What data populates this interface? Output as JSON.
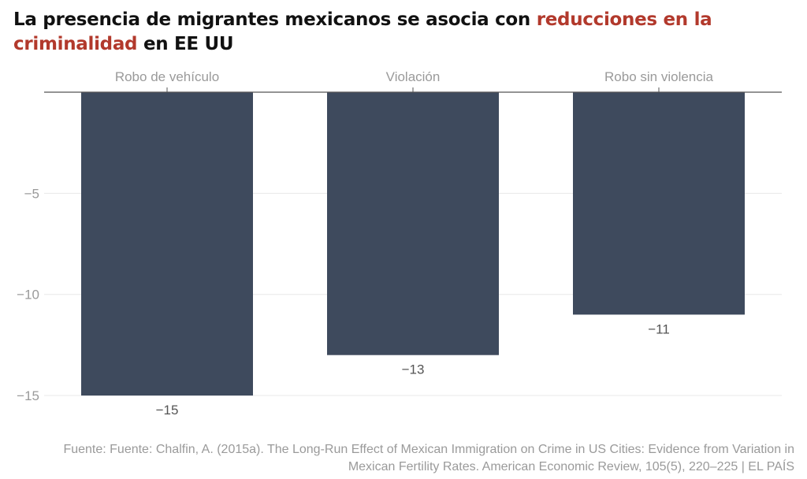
{
  "title": {
    "part1": "La presencia de migrantes mexicanos se asocia con ",
    "highlight": "reducciones en la criminalidad",
    "part2": " en EE UU"
  },
  "colors": {
    "bar": "#3e4a5d",
    "highlight": "#b2392c",
    "axis_text": "#9a9a9a",
    "grid": "#e8e8e8",
    "axis_line": "#555555"
  },
  "source": "Fuente: Fuente: Chalfin, A. (2015a). The Long-Run Effect of Mexican Immigration on Crime in US Cities: Evidence from Variation in Mexican Fertility Rates. American Economic Review, 105(5), 220–225 | EL PAÍS",
  "chart_data": {
    "type": "bar",
    "orientation": "vertical",
    "title": "La presencia de migrantes mexicanos se asocia con reducciones en la criminalidad en EE UU",
    "categories": [
      "Robo de vehículo",
      "Violación",
      "Robo sin violencia"
    ],
    "values": [
      -15,
      -13,
      -11
    ],
    "data_labels": [
      "−15",
      "−13",
      "−11"
    ],
    "xlabel": "",
    "ylabel": "",
    "ylim": [
      -15.5,
      0
    ],
    "yticks": [
      -5,
      -10,
      -15
    ],
    "ytick_labels": [
      "−5",
      "−10",
      "−15"
    ],
    "x_axis_position": "top",
    "grid": true,
    "legend": "none"
  }
}
